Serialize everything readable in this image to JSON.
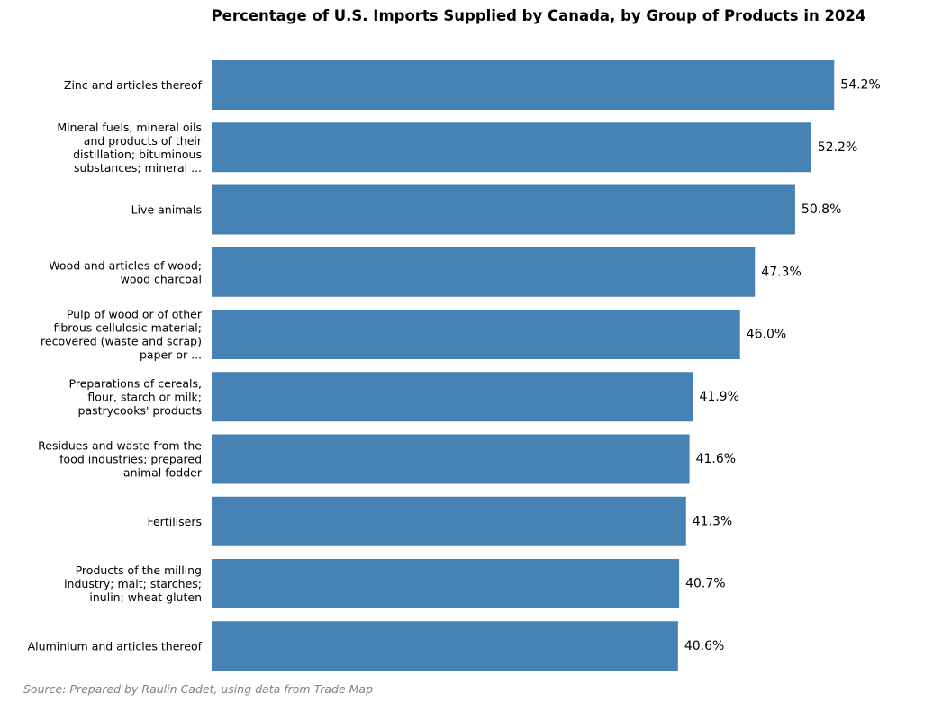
{
  "chart_data": {
    "type": "bar",
    "orientation": "horizontal",
    "title": "Percentage of U.S. Imports Supplied by Canada, by Group of Products in 2024",
    "xlabel": "",
    "ylabel": "",
    "unit": "%",
    "xlim": [
      0,
      57
    ],
    "grid": false,
    "bar_color": "#4682b4",
    "categories": [
      {
        "lines": [
          "Zinc and articles thereof"
        ]
      },
      {
        "lines": [
          "Mineral fuels, mineral oils",
          "and products of their",
          "distillation; bituminous",
          "substances; mineral ..."
        ]
      },
      {
        "lines": [
          "Live animals"
        ]
      },
      {
        "lines": [
          "Wood and articles of wood;",
          "wood charcoal"
        ]
      },
      {
        "lines": [
          "Pulp of wood or of other",
          "fibrous cellulosic material;",
          "recovered (waste and scrap)",
          "paper or ..."
        ]
      },
      {
        "lines": [
          "Preparations of cereals,",
          "flour, starch or milk;",
          "pastrycooks' products"
        ]
      },
      {
        "lines": [
          "Residues and waste from the",
          "food industries; prepared",
          "animal fodder"
        ]
      },
      {
        "lines": [
          "Fertilisers"
        ]
      },
      {
        "lines": [
          "Products of the milling",
          "industry; malt; starches;",
          "inulin; wheat gluten"
        ]
      },
      {
        "lines": [
          "Aluminium and articles thereof"
        ]
      }
    ],
    "values": [
      54.2,
      52.2,
      50.8,
      47.3,
      46.0,
      41.9,
      41.6,
      41.3,
      40.7,
      40.6
    ],
    "value_labels": [
      "54.2%",
      "52.2%",
      "50.8%",
      "47.3%",
      "46.0%",
      "41.9%",
      "41.6%",
      "41.3%",
      "40.7%",
      "40.6%"
    ],
    "source": "Source: Prepared by Raulin Cadet, using data from Trade Map"
  }
}
